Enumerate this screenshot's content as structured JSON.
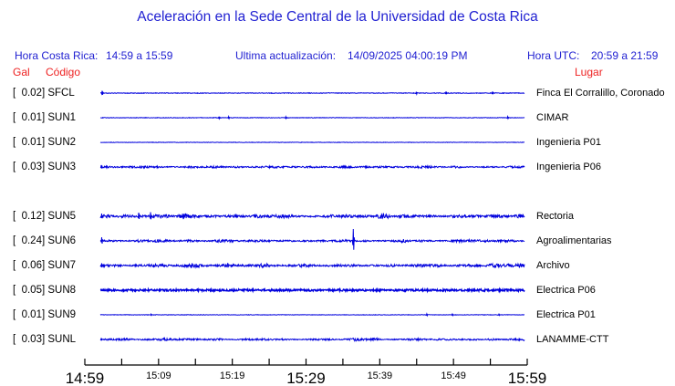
{
  "header": {
    "hora_cr_label": "Hora Costa Rica:",
    "hora_cr_value": "14:59 a 15:59",
    "actualizacion_label": "Ultima actualización:",
    "actualizacion_value": "14/09/2025 04:00:19 PM",
    "hora_utc_label": "Hora UTC:",
    "hora_utc_value": "20:59 a 21:59"
  },
  "column_headers": {
    "gal": "Gal",
    "codigo": "Código",
    "lugar": "Lugar"
  },
  "colors": {
    "blue_text": "#2222d2",
    "red_text": "#ee2222",
    "trace_blue": "#0000dd",
    "axis_black": "#000000"
  },
  "chart_data": {
    "type": "line",
    "title": "Aceleración en la Sede Central de la Universidad de Costa Rica",
    "units": "Gal",
    "x_axis": {
      "start": "14:59",
      "end": "15:59",
      "tick_interval_minutes": 5,
      "num_ticks": 13,
      "tick_labels": [
        {
          "text": "14:59",
          "pos": 0,
          "size": "large"
        },
        {
          "text": "15:09",
          "pos": 0.166667,
          "size": "small"
        },
        {
          "text": "15:19",
          "pos": 0.333333,
          "size": "small"
        },
        {
          "text": "15:29",
          "pos": 0.5,
          "size": "large"
        },
        {
          "text": "15:39",
          "pos": 0.666667,
          "size": "small"
        },
        {
          "text": "15:49",
          "pos": 0.833333,
          "size": "small"
        },
        {
          "text": "15:59",
          "pos": 1,
          "size": "large"
        }
      ]
    },
    "stations": [
      {
        "slot": 0,
        "gal": 0.02,
        "code": "SFCL",
        "lugar": "Finca El Corralillo, Coronado",
        "trace": {
          "amp": 0.35,
          "bursty": false,
          "stroke": 1,
          "spikes": [
            {
              "p": 0.004,
              "h": 2.5
            },
            {
              "p": 0.745,
              "h": 1.4
            },
            {
              "p": 0.815,
              "h": 1.6
            },
            {
              "p": 0.925,
              "h": 1.6
            }
          ]
        }
      },
      {
        "slot": 1,
        "gal": 0.01,
        "code": "SUN1",
        "lugar": "CIMAR",
        "trace": {
          "amp": 0.3,
          "bursty": false,
          "stroke": 1,
          "spikes": [
            {
              "p": 0.28,
              "h": 1.3
            },
            {
              "p": 0.302,
              "h": 1.2
            },
            {
              "p": 0.437,
              "h": 1.1
            },
            {
              "p": 0.96,
              "h": 1.2
            }
          ]
        }
      },
      {
        "slot": 2,
        "gal": 0.01,
        "code": "SUN2",
        "lugar": "Ingenieria P01",
        "trace": {
          "amp": 0.25,
          "bursty": false,
          "stroke": 1,
          "spikes": []
        }
      },
      {
        "slot": 3,
        "gal": 0.03,
        "code": "SUN3",
        "lugar": "Ingenieria P06",
        "trace": {
          "amp": 1.3,
          "bursty": true,
          "stroke": 1,
          "spikes": [
            {
              "p": 0.002,
              "h": 2
            }
          ]
        }
      },
      {
        "slot": 5,
        "gal": 0.12,
        "code": "SUN5",
        "lugar": "Rectoria",
        "trace": {
          "amp": 2.2,
          "bursty": true,
          "stroke": 1,
          "spikes": [
            {
              "p": 0.003,
              "h": 3
            },
            {
              "p": 0.09,
              "h": 4
            },
            {
              "p": 0.118,
              "h": 4.5
            }
          ]
        }
      },
      {
        "slot": 6,
        "gal": 0.24,
        "code": "SUN6",
        "lugar": "Agroalimentarias",
        "trace": {
          "amp": 1.5,
          "bursty": true,
          "stroke": 1,
          "spikes": [
            {
              "p": 0.003,
              "h": 4
            },
            {
              "p": 0.596,
              "h": 13
            }
          ]
        }
      },
      {
        "slot": 7,
        "gal": 0.06,
        "code": "SUN7",
        "lugar": "Archivo",
        "trace": {
          "amp": 1.7,
          "bursty": true,
          "stroke": 1,
          "spikes": [
            {
              "p": 0.003,
              "h": 2.5
            }
          ]
        }
      },
      {
        "slot": 8,
        "gal": 0.05,
        "code": "SUN8",
        "lugar": "Electrica P06",
        "trace": {
          "amp": 1.1,
          "bursty": false,
          "stroke": 1.4,
          "spikes": [
            {
              "p": 0.14,
              "h": 2
            },
            {
              "p": 0.88,
              "h": 2
            }
          ]
        }
      },
      {
        "slot": 9,
        "gal": 0.01,
        "code": "SUN9",
        "lugar": "Electrica P01",
        "trace": {
          "amp": 0.28,
          "bursty": false,
          "stroke": 1,
          "spikes": [
            {
              "p": 0.12,
              "h": 0.8
            },
            {
              "p": 0.77,
              "h": 1.1
            },
            {
              "p": 0.83,
              "h": 0.9
            },
            {
              "p": 0.94,
              "h": 0.8
            }
          ]
        }
      },
      {
        "slot": 10,
        "gal": 0.03,
        "code": "SUNL",
        "lugar": "LANAMME-CTT",
        "trace": {
          "amp": 1.15,
          "bursty": true,
          "stroke": 1,
          "spikes": [
            {
              "p": 0.002,
              "h": 1.5
            }
          ]
        }
      }
    ]
  }
}
